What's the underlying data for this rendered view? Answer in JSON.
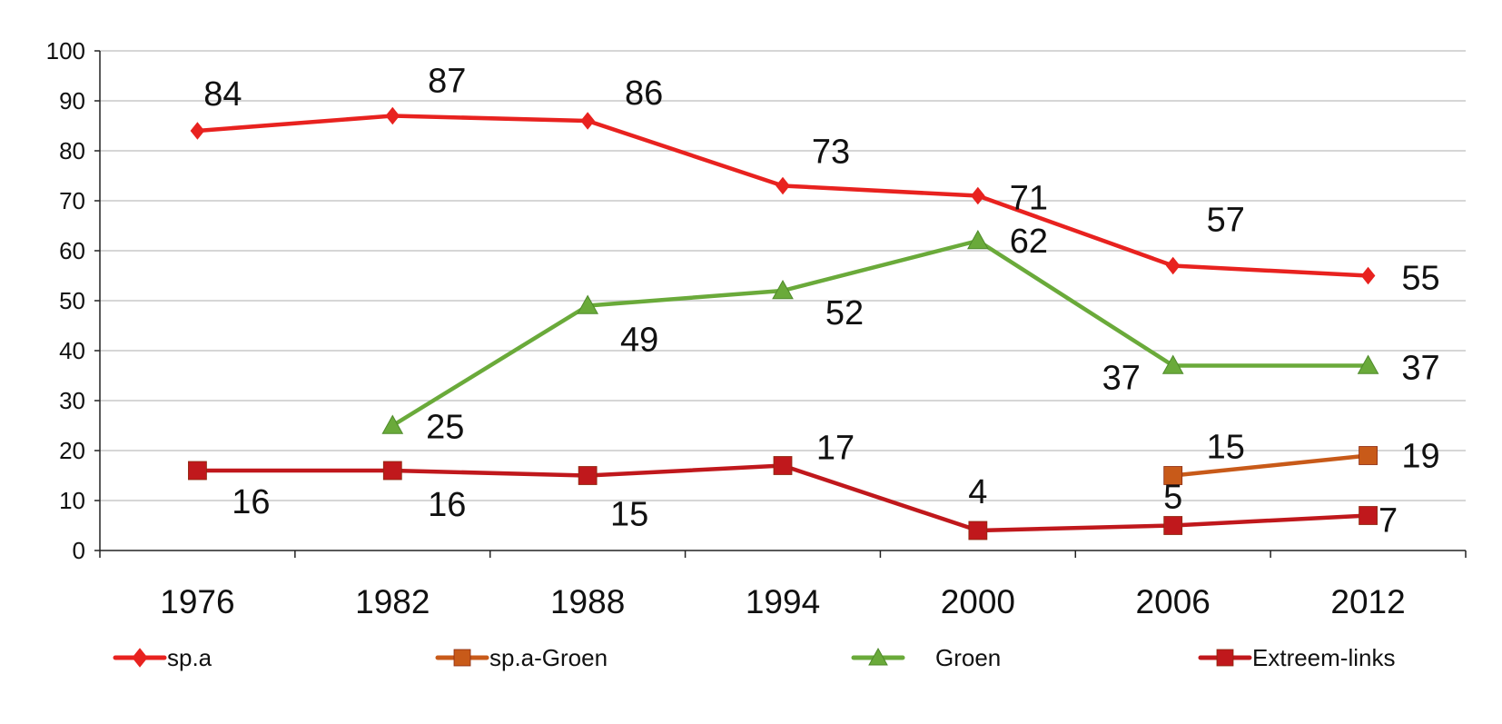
{
  "chart_data": {
    "type": "line",
    "title": "",
    "xlabel": "",
    "ylabel": "",
    "categories": [
      "1976",
      "1982",
      "1988",
      "1994",
      "2000",
      "2006",
      "2012"
    ],
    "ylim": [
      0,
      100
    ],
    "yticks": [
      "0",
      "10",
      "20",
      "30",
      "40",
      "50",
      "60",
      "70",
      "80",
      "90",
      "100"
    ],
    "grid": true,
    "legend_position": "bottom",
    "series": [
      {
        "name": "sp.a",
        "color": "#e8221f",
        "marker": "diamond",
        "values": [
          84,
          87,
          86,
          73,
          71,
          57,
          55
        ],
        "labels": [
          "84",
          "87",
          "86",
          "73",
          "71",
          "57",
          "55"
        ]
      },
      {
        "name": "sp.a-Groen",
        "color": "#c85a19",
        "marker": "square",
        "values": [
          null,
          null,
          null,
          null,
          null,
          15,
          19
        ],
        "labels": [
          null,
          null,
          null,
          null,
          null,
          "15",
          "19"
        ]
      },
      {
        "name": "Groen",
        "color": "#6aaa3a",
        "marker": "triangle",
        "values": [
          null,
          25,
          49,
          52,
          62,
          37,
          37
        ],
        "labels": [
          null,
          "25",
          "49",
          "52",
          "62",
          "37",
          "37"
        ]
      },
      {
        "name": "Extreem-links",
        "color": "#c0181c",
        "marker": "square",
        "values": [
          16,
          16,
          15,
          17,
          4,
          5,
          7
        ],
        "labels": [
          "16",
          "16",
          "15",
          "17",
          "4",
          "5",
          "7"
        ]
      }
    ]
  }
}
